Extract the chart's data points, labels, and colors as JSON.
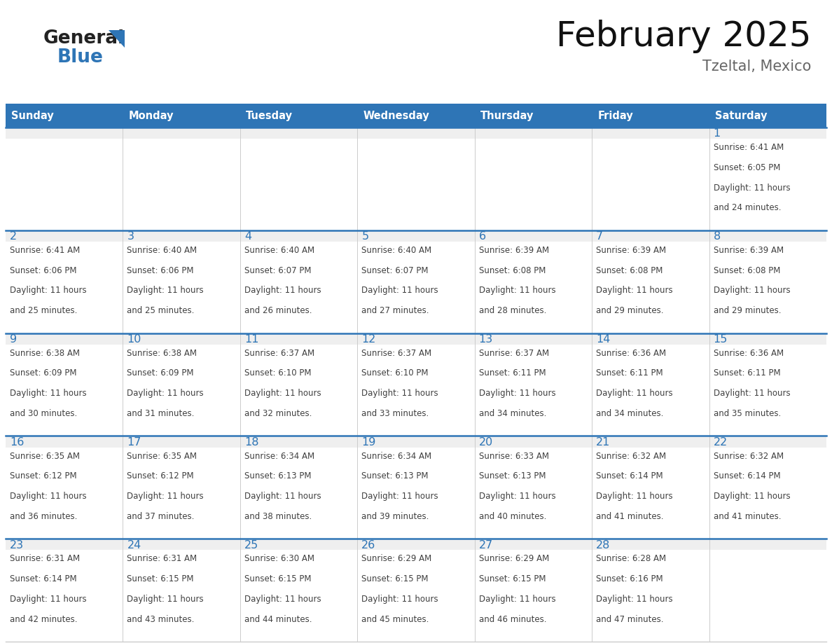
{
  "title": "February 2025",
  "subtitle": "Tzeltal, Mexico",
  "header_bg": "#2E75B6",
  "header_text_color": "#FFFFFF",
  "cell_bg_light": "#EFEFEF",
  "cell_bg_white": "#FFFFFF",
  "border_color": "#2E75B6",
  "row_top_color": "#CCCCCC",
  "day_names": [
    "Sunday",
    "Monday",
    "Tuesday",
    "Wednesday",
    "Thursday",
    "Friday",
    "Saturday"
  ],
  "text_color": "#404040",
  "date_color": "#2E75B6",
  "logo_general_color": "#222222",
  "logo_blue_color": "#2E75B6",
  "days": [
    {
      "date": 1,
      "row": 0,
      "col": 6,
      "sunrise": "6:41 AM",
      "sunset": "6:05 PM",
      "daylight_h": "11 hours",
      "daylight_m": "24 minutes."
    },
    {
      "date": 2,
      "row": 1,
      "col": 0,
      "sunrise": "6:41 AM",
      "sunset": "6:06 PM",
      "daylight_h": "11 hours",
      "daylight_m": "25 minutes."
    },
    {
      "date": 3,
      "row": 1,
      "col": 1,
      "sunrise": "6:40 AM",
      "sunset": "6:06 PM",
      "daylight_h": "11 hours",
      "daylight_m": "25 minutes."
    },
    {
      "date": 4,
      "row": 1,
      "col": 2,
      "sunrise": "6:40 AM",
      "sunset": "6:07 PM",
      "daylight_h": "11 hours",
      "daylight_m": "26 minutes."
    },
    {
      "date": 5,
      "row": 1,
      "col": 3,
      "sunrise": "6:40 AM",
      "sunset": "6:07 PM",
      "daylight_h": "11 hours",
      "daylight_m": "27 minutes."
    },
    {
      "date": 6,
      "row": 1,
      "col": 4,
      "sunrise": "6:39 AM",
      "sunset": "6:08 PM",
      "daylight_h": "11 hours",
      "daylight_m": "28 minutes."
    },
    {
      "date": 7,
      "row": 1,
      "col": 5,
      "sunrise": "6:39 AM",
      "sunset": "6:08 PM",
      "daylight_h": "11 hours",
      "daylight_m": "29 minutes."
    },
    {
      "date": 8,
      "row": 1,
      "col": 6,
      "sunrise": "6:39 AM",
      "sunset": "6:08 PM",
      "daylight_h": "11 hours",
      "daylight_m": "29 minutes."
    },
    {
      "date": 9,
      "row": 2,
      "col": 0,
      "sunrise": "6:38 AM",
      "sunset": "6:09 PM",
      "daylight_h": "11 hours",
      "daylight_m": "30 minutes."
    },
    {
      "date": 10,
      "row": 2,
      "col": 1,
      "sunrise": "6:38 AM",
      "sunset": "6:09 PM",
      "daylight_h": "11 hours",
      "daylight_m": "31 minutes."
    },
    {
      "date": 11,
      "row": 2,
      "col": 2,
      "sunrise": "6:37 AM",
      "sunset": "6:10 PM",
      "daylight_h": "11 hours",
      "daylight_m": "32 minutes."
    },
    {
      "date": 12,
      "row": 2,
      "col": 3,
      "sunrise": "6:37 AM",
      "sunset": "6:10 PM",
      "daylight_h": "11 hours",
      "daylight_m": "33 minutes."
    },
    {
      "date": 13,
      "row": 2,
      "col": 4,
      "sunrise": "6:37 AM",
      "sunset": "6:11 PM",
      "daylight_h": "11 hours",
      "daylight_m": "34 minutes."
    },
    {
      "date": 14,
      "row": 2,
      "col": 5,
      "sunrise": "6:36 AM",
      "sunset": "6:11 PM",
      "daylight_h": "11 hours",
      "daylight_m": "34 minutes."
    },
    {
      "date": 15,
      "row": 2,
      "col": 6,
      "sunrise": "6:36 AM",
      "sunset": "6:11 PM",
      "daylight_h": "11 hours",
      "daylight_m": "35 minutes."
    },
    {
      "date": 16,
      "row": 3,
      "col": 0,
      "sunrise": "6:35 AM",
      "sunset": "6:12 PM",
      "daylight_h": "11 hours",
      "daylight_m": "36 minutes."
    },
    {
      "date": 17,
      "row": 3,
      "col": 1,
      "sunrise": "6:35 AM",
      "sunset": "6:12 PM",
      "daylight_h": "11 hours",
      "daylight_m": "37 minutes."
    },
    {
      "date": 18,
      "row": 3,
      "col": 2,
      "sunrise": "6:34 AM",
      "sunset": "6:13 PM",
      "daylight_h": "11 hours",
      "daylight_m": "38 minutes."
    },
    {
      "date": 19,
      "row": 3,
      "col": 3,
      "sunrise": "6:34 AM",
      "sunset": "6:13 PM",
      "daylight_h": "11 hours",
      "daylight_m": "39 minutes."
    },
    {
      "date": 20,
      "row": 3,
      "col": 4,
      "sunrise": "6:33 AM",
      "sunset": "6:13 PM",
      "daylight_h": "11 hours",
      "daylight_m": "40 minutes."
    },
    {
      "date": 21,
      "row": 3,
      "col": 5,
      "sunrise": "6:32 AM",
      "sunset": "6:14 PM",
      "daylight_h": "11 hours",
      "daylight_m": "41 minutes."
    },
    {
      "date": 22,
      "row": 3,
      "col": 6,
      "sunrise": "6:32 AM",
      "sunset": "6:14 PM",
      "daylight_h": "11 hours",
      "daylight_m": "41 minutes."
    },
    {
      "date": 23,
      "row": 4,
      "col": 0,
      "sunrise": "6:31 AM",
      "sunset": "6:14 PM",
      "daylight_h": "11 hours",
      "daylight_m": "42 minutes."
    },
    {
      "date": 24,
      "row": 4,
      "col": 1,
      "sunrise": "6:31 AM",
      "sunset": "6:15 PM",
      "daylight_h": "11 hours",
      "daylight_m": "43 minutes."
    },
    {
      "date": 25,
      "row": 4,
      "col": 2,
      "sunrise": "6:30 AM",
      "sunset": "6:15 PM",
      "daylight_h": "11 hours",
      "daylight_m": "44 minutes."
    },
    {
      "date": 26,
      "row": 4,
      "col": 3,
      "sunrise": "6:29 AM",
      "sunset": "6:15 PM",
      "daylight_h": "11 hours",
      "daylight_m": "45 minutes."
    },
    {
      "date": 27,
      "row": 4,
      "col": 4,
      "sunrise": "6:29 AM",
      "sunset": "6:15 PM",
      "daylight_h": "11 hours",
      "daylight_m": "46 minutes."
    },
    {
      "date": 28,
      "row": 4,
      "col": 5,
      "sunrise": "6:28 AM",
      "sunset": "6:16 PM",
      "daylight_h": "11 hours",
      "daylight_m": "47 minutes."
    }
  ]
}
